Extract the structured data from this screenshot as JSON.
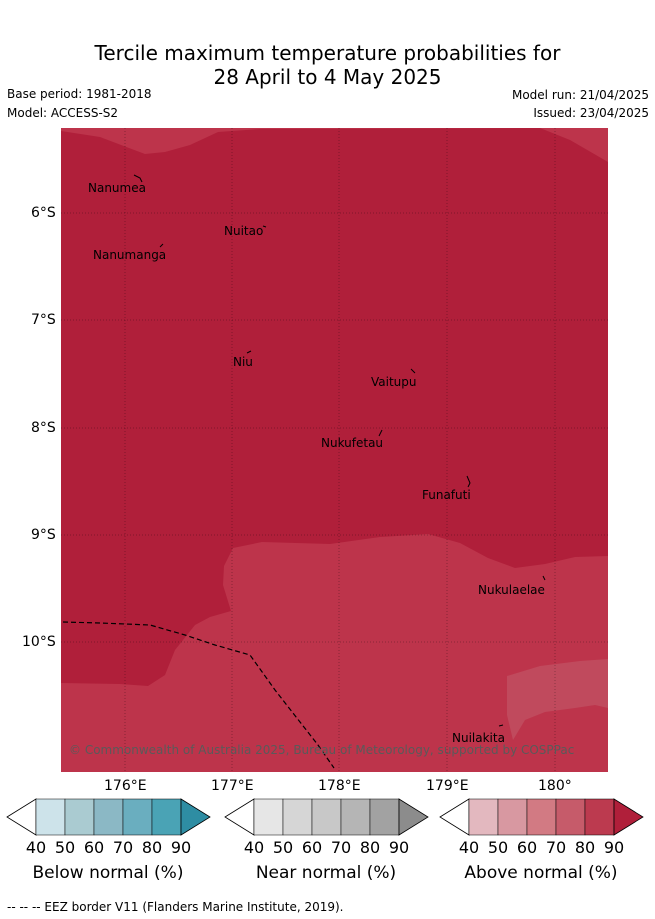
{
  "header": {
    "title_line1": "Tercile maximum temperature probabilities for",
    "title_line2": "28 April to 4 May 2025",
    "base_period": "Base period: 1981-2018",
    "model": "Model: ACCESS-S2",
    "model_run": "Model run: 21/04/2025",
    "issued": "Issued: 23/04/2025"
  },
  "map": {
    "lat_labels": [
      "6°S",
      "7°S",
      "8°S",
      "9°S",
      "10°S"
    ],
    "lon_labels": [
      "176°E",
      "177°E",
      "178°E",
      "179°E",
      "180°"
    ],
    "islands": [
      {
        "name": "Nanumea"
      },
      {
        "name": "Nuitao"
      },
      {
        "name": "Nanumanga"
      },
      {
        "name": "Niu"
      },
      {
        "name": "Vaitupu"
      },
      {
        "name": "Nukufetau"
      },
      {
        "name": "Funafuti"
      },
      {
        "name": "Nukulaelae"
      },
      {
        "name": "Nuilakita"
      }
    ],
    "copyright": "© Commonwealth of Australia 2025, Bureau of Meteorology, supported by COSPPac",
    "colors": {
      "above_90": "#b01f3a",
      "above_80": "#bd344b",
      "above_70": "#c04a5d"
    }
  },
  "colorbars": [
    {
      "label": "Below normal (%)",
      "ticks": [
        "40",
        "50",
        "60",
        "70",
        "80",
        "90"
      ],
      "colors": [
        "#ffffff",
        "#cde3ea",
        "#aacbd1",
        "#8bb8c5",
        "#6aaebf",
        "#4aa3b5",
        "#2e8da3"
      ]
    },
    {
      "label": "Near normal (%)",
      "ticks": [
        "40",
        "50",
        "60",
        "70",
        "80",
        "90"
      ],
      "colors": [
        "#ffffff",
        "#e6e6e6",
        "#d6d6d6",
        "#c8c8c8",
        "#b5b5b5",
        "#a2a2a2",
        "#8c8c8c"
      ]
    },
    {
      "label": "Above normal (%)",
      "ticks": [
        "40",
        "50",
        "60",
        "70",
        "80",
        "90"
      ],
      "colors": [
        "#ffffff",
        "#e3b8bf",
        "#d898a1",
        "#d27a83",
        "#c65b6a",
        "#bc3a4f",
        "#b01f3a"
      ]
    }
  ],
  "footer": "--  --  -- EEZ border V11 (Flanders Marine Institute, 2019)."
}
